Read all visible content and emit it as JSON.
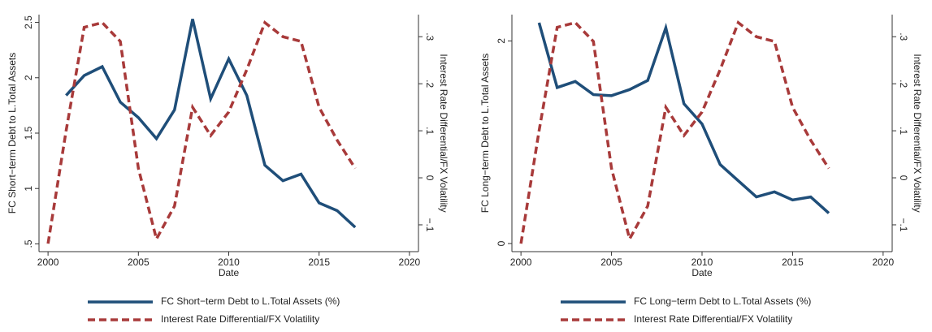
{
  "chart_data": [
    {
      "type": "line",
      "x": [
        2000,
        2001,
        2002,
        2003,
        2004,
        2005,
        2006,
        2007,
        2008,
        2009,
        2010,
        2011,
        2012,
        2013,
        2014,
        2015,
        2016,
        2017
      ],
      "xlabel": "Date",
      "ylabel": "FC Short−term Debt to L.Total Assets",
      "y2label": "Interest Rate Differential/FX Volatility",
      "xlim": [
        1999.5,
        2020.5
      ],
      "xticks": [
        2000,
        2005,
        2010,
        2015,
        2020
      ],
      "ylim": [
        0.43,
        2.57
      ],
      "yticks": [
        {
          "value": 0.5,
          "label": ".5"
        },
        1,
        1.5,
        2,
        2.5
      ],
      "y2lim": [
        -0.157,
        0.347
      ],
      "y2ticks": [
        {
          "value": -0.1,
          "label": "−.1"
        },
        0,
        {
          "value": 0.1,
          "label": ".1"
        },
        {
          "value": 0.2,
          "label": ".2"
        },
        {
          "value": 0.3,
          "label": ".3"
        }
      ],
      "series": [
        {
          "name": "FC Short−term Debt to L.Total Assets (%)",
          "color": "#1f4e79",
          "values": [
            null,
            1.84,
            2.02,
            2.1,
            1.78,
            1.64,
            1.45,
            1.71,
            2.53,
            1.81,
            2.17,
            1.84,
            1.21,
            1.07,
            1.13,
            0.87,
            0.8,
            0.65
          ]
        },
        {
          "name": "Interest Rate Differential/FX Volatility",
          "color": "#a83a3a",
          "axis": "y2",
          "dashed": true,
          "values": [
            -0.14,
            0.1,
            0.32,
            0.33,
            0.29,
            0.02,
            -0.13,
            -0.06,
            0.15,
            0.09,
            0.14,
            0.23,
            0.33,
            0.3,
            0.29,
            0.15,
            0.08,
            0.02
          ]
        }
      ]
    },
    {
      "type": "line",
      "x": [
        2000,
        2001,
        2002,
        2003,
        2004,
        2005,
        2006,
        2007,
        2008,
        2009,
        2010,
        2011,
        2012,
        2013,
        2014,
        2015,
        2016,
        2017
      ],
      "xlabel": "Date",
      "ylabel": "FC Long−term Debt to L.Total Assets",
      "y2label": "Interest Rate Differential/FX Volatility",
      "xlim": [
        1999.5,
        2020.5
      ],
      "xticks": [
        2000,
        2005,
        2010,
        2015,
        2020
      ],
      "ylim": [
        -0.08,
        2.26
      ],
      "yticks": [
        0,
        2
      ],
      "y2lim": [
        -0.157,
        0.347
      ],
      "y2ticks": [
        {
          "value": -0.1,
          "label": "−.1"
        },
        0,
        {
          "value": 0.1,
          "label": ".1"
        },
        {
          "value": 0.2,
          "label": ".2"
        },
        {
          "value": 0.3,
          "label": ".3"
        }
      ],
      "series": [
        {
          "name": "FC Long−term Debt to L.Total Assets (%)",
          "color": "#1f4e79",
          "values": [
            null,
            2.18,
            1.54,
            1.6,
            1.47,
            1.46,
            1.52,
            1.61,
            2.13,
            1.38,
            1.18,
            0.78,
            0.62,
            0.46,
            0.51,
            0.43,
            0.46,
            0.3
          ]
        },
        {
          "name": "Interest Rate Differential/FX Volatility",
          "color": "#a83a3a",
          "axis": "y2",
          "dashed": true,
          "values": [
            -0.14,
            0.1,
            0.32,
            0.33,
            0.29,
            0.02,
            -0.13,
            -0.06,
            0.15,
            0.09,
            0.14,
            0.23,
            0.33,
            0.3,
            0.29,
            0.15,
            0.08,
            0.02
          ]
        }
      ]
    }
  ]
}
